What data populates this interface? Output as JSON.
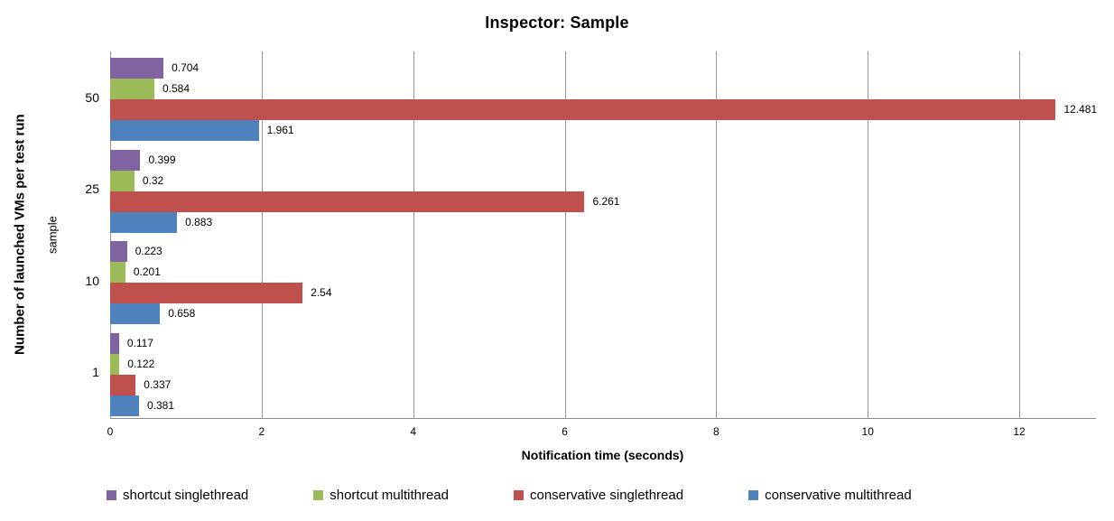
{
  "chart_data": {
    "type": "bar",
    "orientation": "horizontal",
    "title": "Inspector: Sample",
    "xlabel": "Notification time (seconds)",
    "ylabel": "Number of launched VMs per test run",
    "ylabel_sub": "sample",
    "categories": [
      "50",
      "25",
      "10",
      "1"
    ],
    "series": [
      {
        "name": "shortcut singlethread",
        "color": "#8064A2",
        "values": [
          0.704,
          0.399,
          0.223,
          0.117
        ]
      },
      {
        "name": "shortcut multithread",
        "color": "#9BBB59",
        "values": [
          0.584,
          0.32,
          0.201,
          0.122
        ]
      },
      {
        "name": "conservative singlethread",
        "color": "#C0504D",
        "values": [
          12.481,
          6.261,
          2.54,
          0.337
        ]
      },
      {
        "name": "conservative multithread",
        "color": "#4F81BD",
        "values": [
          1.961,
          0.883,
          0.658,
          0.381
        ]
      }
    ],
    "xlim": [
      0,
      13
    ],
    "xticks": [
      0,
      2,
      4,
      6,
      8,
      10,
      12
    ],
    "grid": true,
    "bar_value_labels": true,
    "legend_position": "bottom",
    "gridline_color": "#979797",
    "axis_color": "#8C8C8C",
    "background_color": "#FFFFFF"
  }
}
